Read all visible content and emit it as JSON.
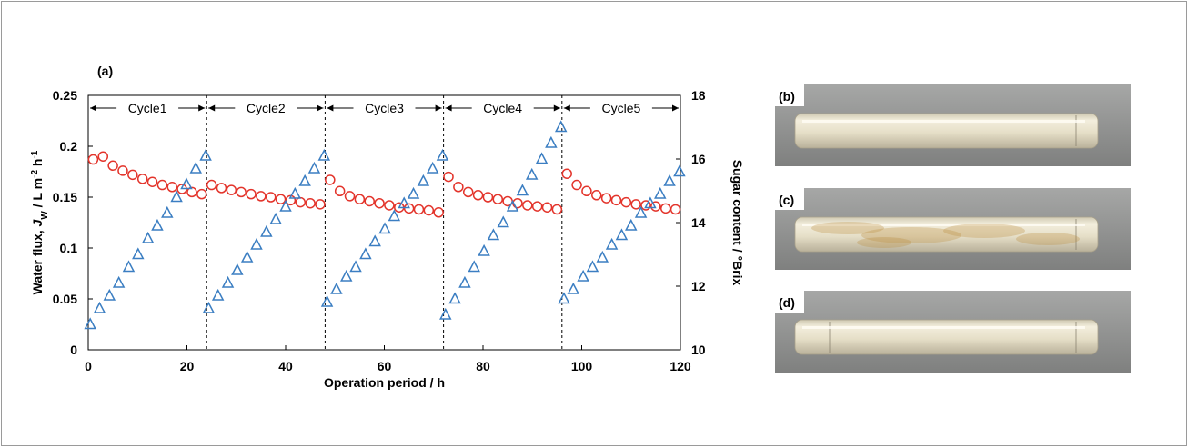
{
  "chart_data": {
    "type": "scatter",
    "panel_label": "(a)",
    "xlabel": "Operation period / h",
    "ylabel": [
      {
        "text": "Water flux, "
      },
      {
        "text": "J",
        "style": "italic"
      },
      {
        "text": "W",
        "style": "sub"
      },
      {
        "text": " / L m"
      },
      {
        "text": "-2",
        "style": "sup"
      },
      {
        "text": " h"
      },
      {
        "text": "-1",
        "style": "sup"
      }
    ],
    "y2label": "Sugar content / °Brix",
    "xlim": [
      0,
      120
    ],
    "xticks": [
      0,
      20,
      40,
      60,
      80,
      100,
      120
    ],
    "ylim": [
      0,
      0.25
    ],
    "yticks": [
      0,
      0.05,
      0.1,
      0.15,
      0.2,
      0.25
    ],
    "y2lim": [
      10,
      18
    ],
    "y2ticks": [
      10,
      12,
      14,
      16,
      18
    ],
    "cycles": [
      {
        "label": "Cycle1",
        "start": 0,
        "end": 24
      },
      {
        "label": "Cycle2",
        "start": 24,
        "end": 48
      },
      {
        "label": "Cycle3",
        "start": 48,
        "end": 72
      },
      {
        "label": "Cycle4",
        "start": 72,
        "end": 96
      },
      {
        "label": "Cycle5",
        "start": 96,
        "end": 120
      }
    ],
    "series": [
      {
        "marker": "circle",
        "color": "#e3342b",
        "x": [
          1,
          3,
          5,
          7,
          9,
          11,
          13,
          15,
          17,
          19,
          21,
          23,
          25,
          27,
          29,
          31,
          33,
          35,
          37,
          39,
          41,
          43,
          45,
          47,
          49,
          51,
          53,
          55,
          57,
          59,
          61,
          63,
          65,
          67,
          69,
          71,
          73,
          75,
          77,
          79,
          81,
          83,
          85,
          87,
          89,
          91,
          93,
          95,
          97,
          99,
          101,
          103,
          105,
          107,
          109,
          111,
          113,
          115,
          117,
          119
        ],
        "values": [
          0.187,
          0.19,
          0.181,
          0.176,
          0.172,
          0.168,
          0.165,
          0.162,
          0.16,
          0.158,
          0.155,
          0.153,
          0.162,
          0.159,
          0.157,
          0.155,
          0.153,
          0.151,
          0.15,
          0.148,
          0.147,
          0.145,
          0.144,
          0.143,
          0.167,
          0.156,
          0.151,
          0.148,
          0.146,
          0.144,
          0.142,
          0.14,
          0.139,
          0.138,
          0.137,
          0.135,
          0.17,
          0.16,
          0.155,
          0.152,
          0.15,
          0.148,
          0.146,
          0.144,
          0.142,
          0.141,
          0.14,
          0.138,
          0.173,
          0.162,
          0.156,
          0.152,
          0.149,
          0.147,
          0.145,
          0.143,
          0.142,
          0.141,
          0.139,
          0.138
        ]
      },
      {
        "marker": "triangle",
        "color": "#3b7ec2",
        "axis": "y2",
        "x": [
          0.4,
          2.3,
          4.3,
          6.2,
          8.2,
          10.1,
          12.1,
          14,
          16,
          17.9,
          19.9,
          21.8,
          23.8,
          24.4,
          26.3,
          28.3,
          30.2,
          32.2,
          34.1,
          36.1,
          38,
          40,
          41.9,
          43.9,
          45.8,
          47.8,
          48.4,
          50.3,
          52.3,
          54.2,
          56.2,
          58.1,
          60.1,
          62,
          64,
          65.9,
          67.9,
          69.8,
          71.8,
          72.4,
          74.3,
          76.3,
          78.2,
          80.2,
          82.1,
          84.1,
          86,
          88,
          89.9,
          91.9,
          93.8,
          95.8,
          96.4,
          98.3,
          100.3,
          102.2,
          104.2,
          106.1,
          108.1,
          110,
          112,
          113.9,
          115.9,
          117.8,
          119.8
        ],
        "values": [
          10.8,
          11.3,
          11.7,
          12.1,
          12.6,
          13,
          13.5,
          13.9,
          14.3,
          14.8,
          15.2,
          15.7,
          16.1,
          11.3,
          11.7,
          12.1,
          12.5,
          12.9,
          13.3,
          13.7,
          14.1,
          14.5,
          14.9,
          15.3,
          15.7,
          16.1,
          11.5,
          11.9,
          12.3,
          12.6,
          13,
          13.4,
          13.8,
          14.2,
          14.6,
          14.9,
          15.3,
          15.7,
          16.1,
          11.1,
          11.6,
          12.1,
          12.6,
          13.1,
          13.6,
          14,
          14.5,
          15,
          15.5,
          16,
          16.5,
          17,
          11.6,
          11.9,
          12.3,
          12.6,
          12.9,
          13.3,
          13.6,
          13.9,
          14.3,
          14.6,
          14.9,
          15.3,
          15.6
        ]
      }
    ]
  },
  "photos": [
    {
      "label": "(b)",
      "stained": false
    },
    {
      "label": "(c)",
      "stained": true
    },
    {
      "label": "(d)",
      "stained": false
    }
  ]
}
